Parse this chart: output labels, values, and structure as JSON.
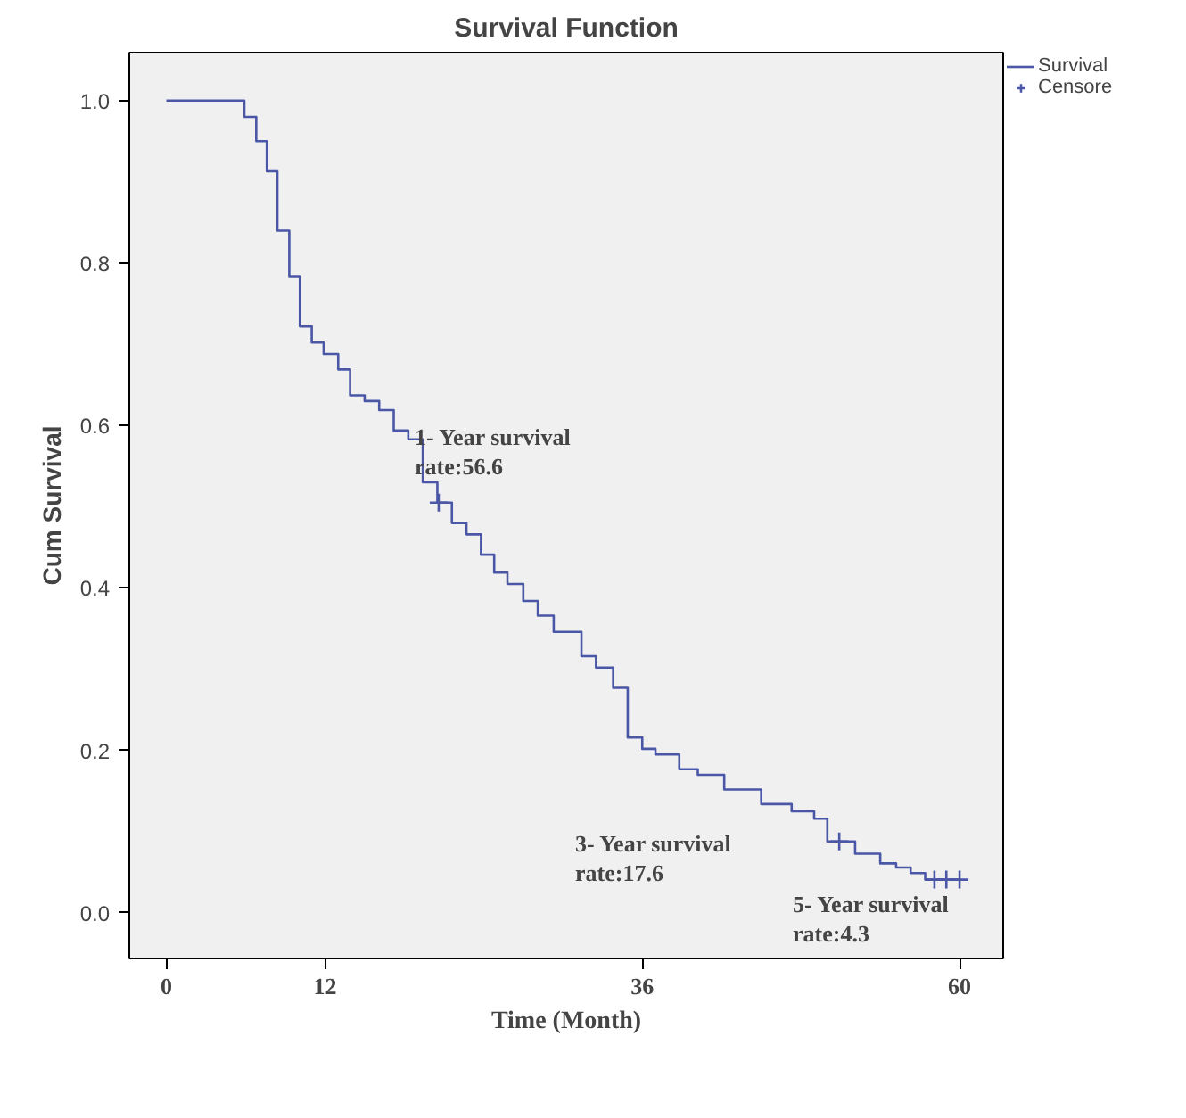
{
  "chart_data": {
    "type": "step",
    "title": "Survival Function",
    "xlabel": "Time (Month)",
    "ylabel": "Cum Survival",
    "xlim": [
      -2.8,
      63.3
    ],
    "ylim": [
      -0.056,
      1.059
    ],
    "xticks": [
      0,
      12,
      36,
      60
    ],
    "yticks": [
      {
        "value": 0,
        "label": "0.0"
      },
      0.2,
      0.4,
      0.6,
      0.8,
      {
        "value": 1,
        "label": "1.0"
      }
    ],
    "grid": false,
    "legend": "top right",
    "series": [
      {
        "name": "Survival",
        "color": "#4a56a6",
        "x": [
          0,
          5.9,
          6.8,
          7.6,
          8.4,
          9.3,
          10.1,
          11.0,
          11.9,
          13.0,
          13.9,
          15.0,
          16.1,
          17.2,
          18.3,
          19.4,
          20.5,
          21.6,
          22.7,
          23.8,
          24.8,
          25.8,
          27.0,
          28.1,
          29.3,
          31.4,
          32.5,
          33.8,
          34.9,
          36.0,
          37.0,
          38.8,
          40.2,
          42.2,
          45.0,
          47.3,
          49.0,
          50.0,
          52.1,
          54.0,
          55.2,
          56.3,
          57.4,
          60.0
        ],
        "values": [
          1.0,
          0.98,
          0.95,
          0.913,
          0.84,
          0.783,
          0.722,
          0.702,
          0.688,
          0.669,
          0.637,
          0.63,
          0.619,
          0.594,
          0.583,
          0.53,
          0.505,
          0.48,
          0.466,
          0.441,
          0.419,
          0.405,
          0.384,
          0.366,
          0.346,
          0.316,
          0.302,
          0.277,
          0.216,
          0.202,
          0.195,
          0.177,
          0.17,
          0.152,
          0.134,
          0.125,
          0.116,
          0.088,
          0.073,
          0.061,
          0.056,
          0.049,
          0.041,
          0.041
        ]
      },
      {
        "name": "Censore",
        "type": "scatter",
        "marker": "cross",
        "color": "#4a56a6",
        "x": [
          20.6,
          50.9,
          58.1,
          59.0,
          60.0
        ],
        "values": [
          0.505,
          0.088,
          0.041,
          0.041,
          0.041
        ]
      }
    ],
    "annotations": [
      "1- Year survival\nrate:56.6",
      "3- Year survival\nrate:17.6",
      "5- Year survival\nrate:4.3"
    ]
  }
}
